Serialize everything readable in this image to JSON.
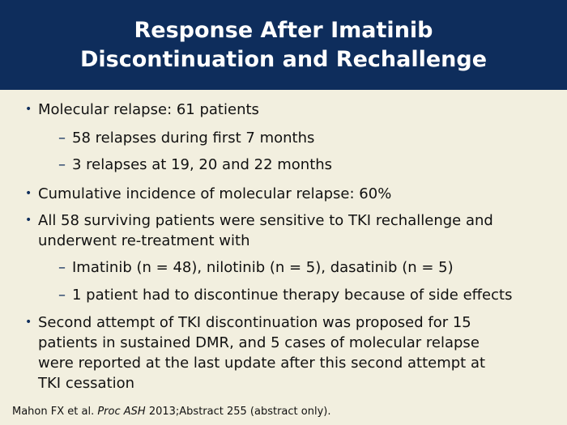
{
  "title": {
    "line1": "Response After Imatinib",
    "line2": "Discontinuation and Rechallenge"
  },
  "bullets": [
    {
      "text": [
        "Molecular relapse: 61 patients"
      ],
      "sub": [
        "58 relapses during first 7 months",
        "3 relapses at 19, 20 and 22 months"
      ]
    },
    {
      "text": [
        "Cumulative incidence of molecular relapse: 60%"
      ],
      "sub": []
    },
    {
      "text": [
        "All 58 surviving patients were sensitive to TKI rechallenge and",
        "underwent re-treatment with"
      ],
      "sub": [
        "Imatinib (n = 48), nilotinib (n = 5), dasatinib (n = 5)",
        "1 patient had to discontinue therapy because of side effects"
      ]
    },
    {
      "text": [
        "Second attempt of TKI discontinuation was proposed for 15",
        "patients in sustained DMR, and 5 cases of molecular relapse",
        "were reported at the last update after this second attempt at",
        "TKI cessation"
      ],
      "sub": []
    }
  ],
  "citation": {
    "prefix": "Mahon FX et al. ",
    "journal": "Proc ASH",
    "suffix": " 2013;Abstract 255 (abstract only)."
  },
  "bullet_glyph": "•",
  "dash_glyph": "–",
  "colors": {
    "title_bar": "#0e2d5c",
    "background": "#f2efdf",
    "title_text": "#ffffff",
    "accent": "#0e2d5c"
  }
}
